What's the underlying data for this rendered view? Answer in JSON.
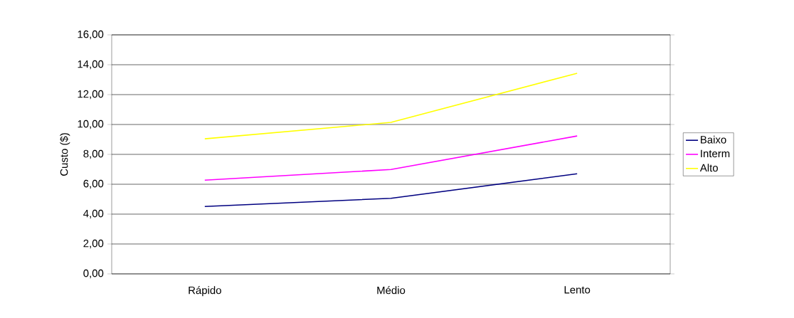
{
  "chart_data": {
    "type": "line",
    "ylabel": "Custo ($)",
    "categories": [
      "Rápido",
      "Médio",
      "Lento"
    ],
    "series": [
      {
        "name": "Baixo",
        "color": "#000080",
        "values": [
          4.51,
          5.06,
          6.7
        ]
      },
      {
        "name": "Interm",
        "color": "#ff00ff",
        "values": [
          6.27,
          6.99,
          9.23
        ]
      },
      {
        "name": "Alto",
        "color": "#ffff00",
        "values": [
          9.04,
          10.14,
          13.43
        ]
      }
    ],
    "ylim": [
      0,
      16
    ],
    "yticks": [
      {
        "value": 0,
        "label": "0,00"
      },
      {
        "value": 2,
        "label": "2,00"
      },
      {
        "value": 4,
        "label": "4,00"
      },
      {
        "value": 6,
        "label": "6,00"
      },
      {
        "value": 8,
        "label": "8,00"
      },
      {
        "value": 10,
        "label": "10,00"
      },
      {
        "value": 12,
        "label": "12,00"
      },
      {
        "value": 14,
        "label": "14,00"
      },
      {
        "value": 16,
        "label": "16,00"
      }
    ],
    "grid": "y",
    "legend": "right",
    "marker": "none",
    "line_style": "solid"
  }
}
